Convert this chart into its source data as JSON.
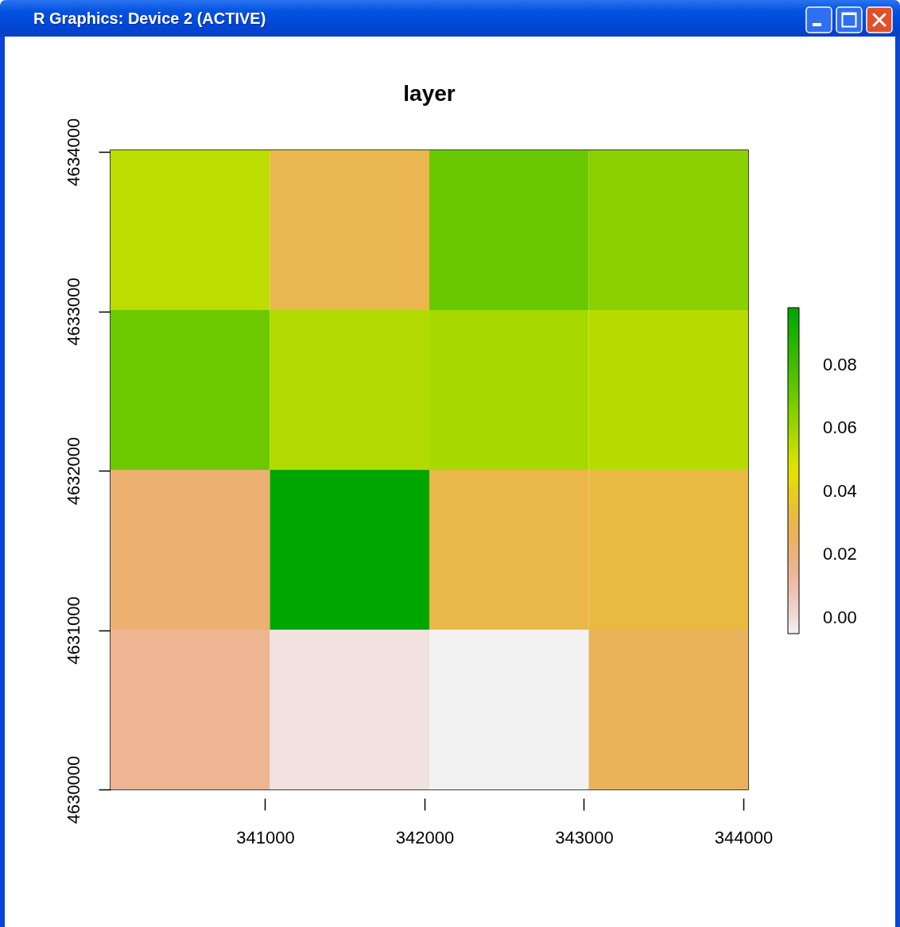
{
  "chart_data": {
    "type": "heatmap",
    "title": "layer",
    "cells": [
      [
        0.054,
        0.029,
        0.071,
        0.064
      ],
      [
        0.07,
        0.056,
        0.058,
        0.055
      ],
      [
        0.022,
        0.098,
        0.03,
        0.032
      ],
      [
        0.015,
        -0.001,
        -0.005,
        0.027
      ]
    ],
    "xlim": [
      340030,
      344030
    ],
    "xticks": [
      341000,
      342000,
      343000,
      344000
    ],
    "ylim": [
      4630000,
      4634010
    ],
    "yticks": [
      4630000,
      4631000,
      4632000,
      4633000,
      4634000
    ],
    "clim": [
      -0.005,
      0.098
    ],
    "cticks": [
      {
        "value": 0,
        "label": "0.00"
      },
      0.02,
      0.04,
      0.06,
      0.08
    ],
    "colors": [
      "#f2f2f2",
      "#f1d6d3",
      "#efc2b3",
      "#edb694",
      "#ecb176",
      "#eab358",
      "#e9bd3a",
      "#e7ce1d",
      "#e6e600",
      "#c2de00",
      "#a0d600",
      "#81ce00",
      "#63c600",
      "#47be00",
      "#2db600",
      "#16ae00",
      "#00a600"
    ],
    "annotations": [
      "R Graphics: Device 2 (ACTIVE)"
    ]
  }
}
